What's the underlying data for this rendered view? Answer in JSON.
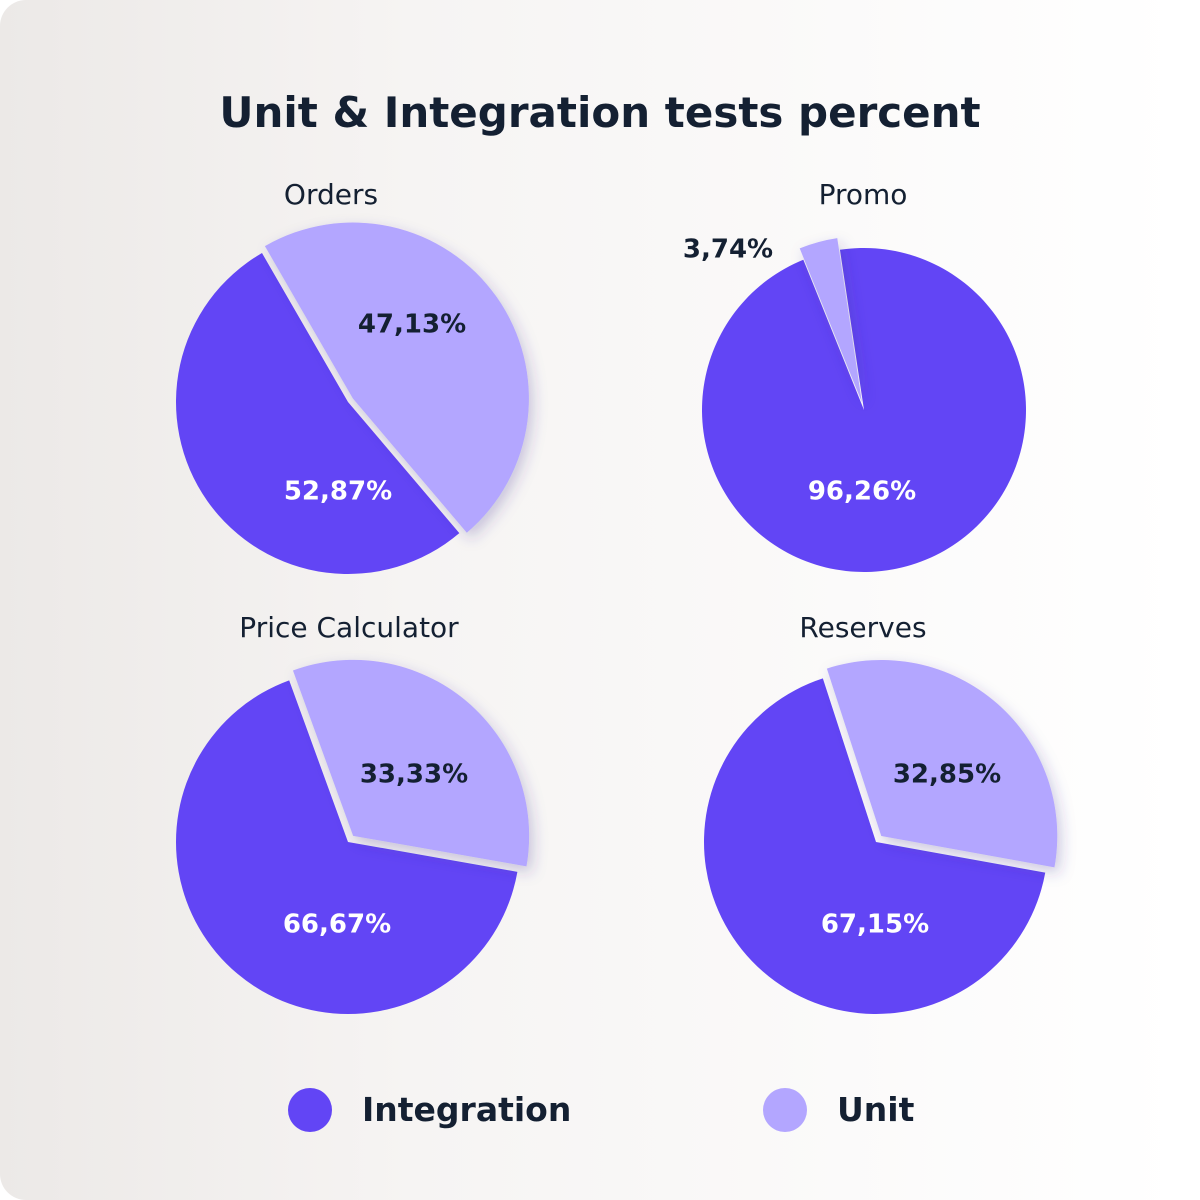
{
  "title": "Unit & Integration tests percent",
  "colors": {
    "Integration": "#6245f5",
    "Unit": "#b3a6ff"
  },
  "legend": [
    {
      "label": "Integration",
      "color": "#6245f5"
    },
    {
      "label": "Unit",
      "color": "#b3a6ff"
    }
  ],
  "chart_data": [
    {
      "type": "pie",
      "title": "Orders",
      "slices": [
        {
          "name": "Unit",
          "value": 47.13,
          "label": "47,13%"
        },
        {
          "name": "Integration",
          "value": 52.87,
          "label": "52,87%"
        }
      ]
    },
    {
      "type": "pie",
      "title": "Promo",
      "slices": [
        {
          "name": "Unit",
          "value": 3.74,
          "label": "3,74%"
        },
        {
          "name": "Integration",
          "value": 96.26,
          "label": "96,26%"
        }
      ]
    },
    {
      "type": "pie",
      "title": "Price Calculator",
      "slices": [
        {
          "name": "Unit",
          "value": 33.33,
          "label": "33,33%"
        },
        {
          "name": "Integration",
          "value": 66.67,
          "label": "66,67%"
        }
      ]
    },
    {
      "type": "pie",
      "title": "Reserves",
      "slices": [
        {
          "name": "Unit",
          "value": 32.85,
          "label": "32,85%"
        },
        {
          "name": "Integration",
          "value": 67.15,
          "label": "67,15%"
        }
      ]
    }
  ]
}
